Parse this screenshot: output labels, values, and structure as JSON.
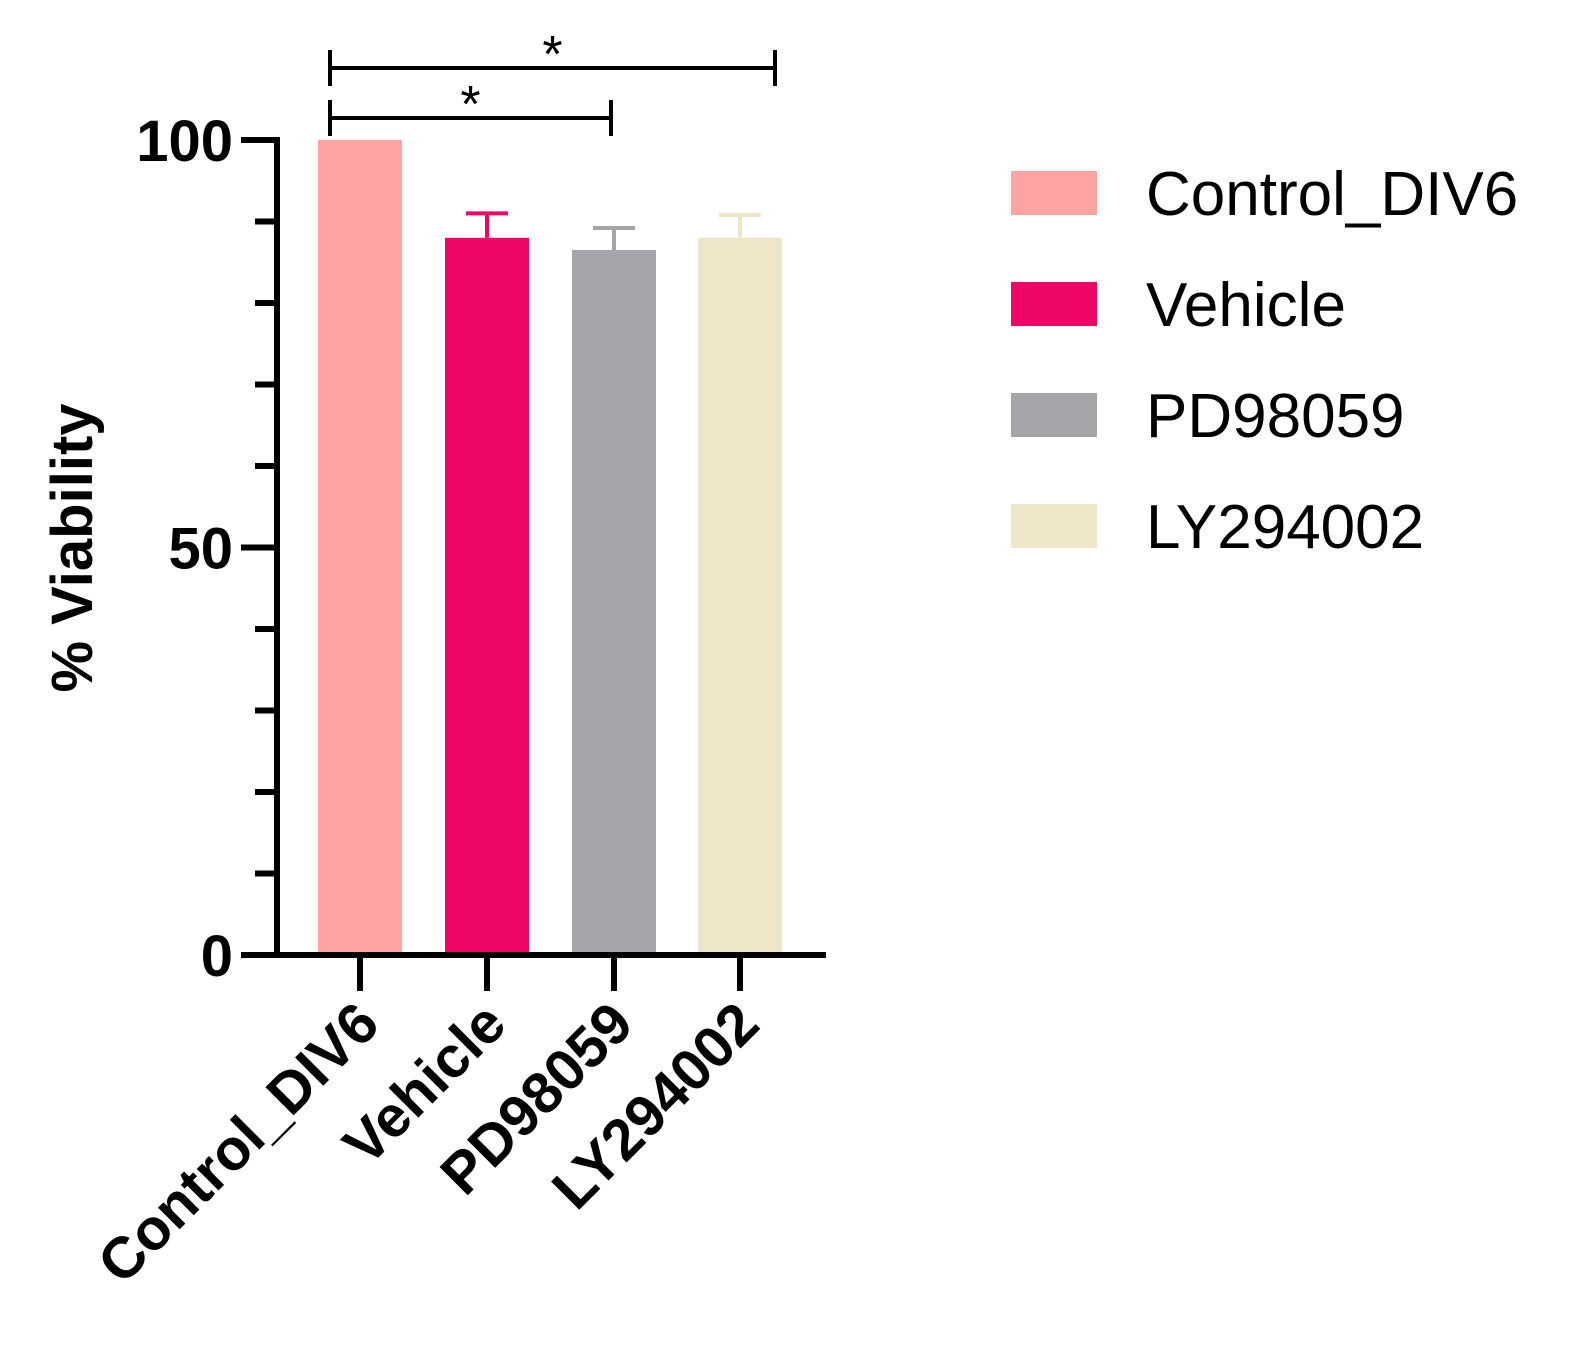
{
  "chart_data": {
    "type": "bar",
    "title": "",
    "xlabel": "",
    "ylabel": "% Viability",
    "ylim": [
      0,
      100
    ],
    "yticks_major": [
      0,
      50,
      100
    ],
    "ytick_labels": [
      "0",
      "50",
      "100"
    ],
    "yminor_step": 10,
    "grid": false,
    "legend_position": "right",
    "categories": [
      "Control_DIV6",
      "Vehicle",
      "PD98059",
      "LY294002"
    ],
    "values": [
      100,
      88,
      86.5,
      88
    ],
    "error_upper": [
      0,
      3,
      2.7,
      2.8
    ],
    "colors": [
      "#FFA3A3",
      "#EE0766",
      "#A5A4A8",
      "#EFE6C9"
    ],
    "error_colors": [
      "#FFA3A3",
      "#EE0766",
      "#A5A4A8",
      "#EFE6C9"
    ],
    "significance": [
      {
        "from": "Control_DIV6",
        "to": "PD98059",
        "label": "*"
      },
      {
        "from": "Control_DIV6",
        "to": "LY294002",
        "label": "*"
      }
    ],
    "legend": [
      {
        "label": "Control_DIV6",
        "color": "#FFA3A3"
      },
      {
        "label": "Vehicle",
        "color": "#EE0766"
      },
      {
        "label": "PD98059",
        "color": "#A5A4A8"
      },
      {
        "label": "LY294002",
        "color": "#EFE6C9"
      }
    ]
  }
}
